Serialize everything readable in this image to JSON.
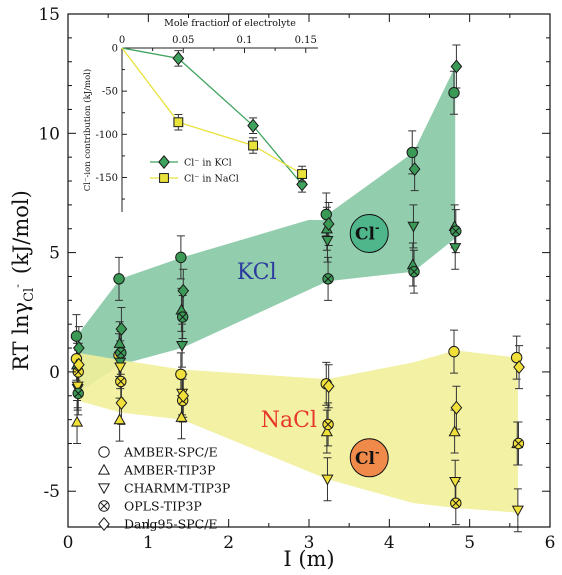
{
  "chart_data": [
    {
      "type": "scatter",
      "title": "",
      "xlabel": "I (m)",
      "ylabel": "RT lnγ",
      "ylabel_sub": "Cl",
      "ylabel_sup": "-",
      "ylabel_unit": "(kJ/mol)",
      "xlim": [
        0,
        6
      ],
      "ylim": [
        -6.5,
        15
      ],
      "xticks": [
        0,
        1,
        2,
        3,
        4,
        5,
        6
      ],
      "yticks": [
        -5,
        0,
        5,
        10,
        15
      ],
      "grid": false,
      "legend_position": "bottom-left",
      "bands": [
        {
          "name": "KCl",
          "label": "KCl",
          "label_color": "#2b3a9e",
          "color": "#7fc4a0",
          "x": [
            0.12,
            0.65,
            1.42,
            3.23,
            4.3,
            4.82
          ],
          "upper": [
            1.55,
            3.9,
            4.8,
            6.6,
            9.2,
            12.8
          ],
          "lower": [
            -0.9,
            0.3,
            1.0,
            3.8,
            4.2,
            5.6
          ]
        },
        {
          "name": "NaCl",
          "label": "NaCl",
          "label_color": "#e8352a",
          "color": "#f1ef9a",
          "x": [
            0.12,
            0.65,
            1.42,
            3.23,
            4.3,
            4.82,
            5.6
          ],
          "upper": [
            0.8,
            0.5,
            0.1,
            -0.3,
            0.4,
            0.9,
            0.6
          ],
          "lower": [
            -1.2,
            -1.7,
            -2.0,
            -4.5,
            -5.5,
            -5.7,
            -5.9
          ]
        }
      ],
      "series": [
        {
          "name": "AMBER-SPC/E",
          "marker": "circle",
          "kcl": [
            [
              0.12,
              1.5
            ],
            [
              0.65,
              3.9
            ],
            [
              1.42,
              4.8
            ],
            [
              3.23,
              6.6
            ],
            [
              4.3,
              9.2
            ],
            [
              4.82,
              11.7
            ]
          ],
          "nacl": [
            [
              0.12,
              0.55
            ],
            [
              0.65,
              0.7
            ],
            [
              1.42,
              -0.1
            ],
            [
              3.23,
              -0.5
            ],
            [
              4.82,
              0.85
            ],
            [
              5.6,
              0.6
            ]
          ]
        },
        {
          "name": "AMBER-TIP3P",
          "marker": "triangle-up",
          "kcl": [
            [
              0.12,
              0.3
            ],
            [
              0.65,
              1.2
            ],
            [
              1.42,
              2.6
            ],
            [
              3.23,
              6.0
            ],
            [
              4.3,
              4.5
            ],
            [
              4.82,
              6.1
            ]
          ],
          "nacl": [
            [
              0.12,
              -2.1
            ],
            [
              0.65,
              -2.0
            ],
            [
              1.42,
              -1.9
            ],
            [
              3.23,
              -2.5
            ],
            [
              4.82,
              -2.5
            ],
            [
              5.6,
              -3.0
            ]
          ]
        },
        {
          "name": "CHARMM-TIP3P",
          "marker": "triangle-down",
          "kcl": [
            [
              0.12,
              -0.7
            ],
            [
              0.65,
              0.4
            ],
            [
              1.42,
              1.1
            ],
            [
              3.23,
              5.5
            ],
            [
              4.3,
              6.1
            ],
            [
              4.82,
              5.2
            ]
          ],
          "nacl": [
            [
              0.12,
              -0.6
            ],
            [
              0.65,
              0.2
            ],
            [
              1.42,
              -0.9
            ],
            [
              3.23,
              -4.5
            ],
            [
              4.82,
              -4.6
            ],
            [
              5.6,
              -5.8
            ]
          ]
        },
        {
          "name": "OPLS-TIP3P",
          "marker": "cross-circle",
          "kcl": [
            [
              0.12,
              -0.9
            ],
            [
              0.65,
              0.8
            ],
            [
              1.42,
              2.3
            ],
            [
              3.23,
              3.9
            ],
            [
              4.3,
              4.2
            ],
            [
              4.82,
              5.9
            ]
          ],
          "nacl": [
            [
              0.12,
              0.0
            ],
            [
              0.65,
              -0.4
            ],
            [
              1.42,
              -1.2
            ],
            [
              3.23,
              -2.2
            ],
            [
              4.82,
              -5.5
            ],
            [
              5.6,
              -3.0
            ]
          ]
        },
        {
          "name": "Dang95-SPC/E",
          "marker": "diamond",
          "kcl": [
            [
              0.12,
              1.0
            ],
            [
              0.65,
              1.8
            ],
            [
              1.42,
              3.4
            ],
            [
              3.23,
              6.2
            ],
            [
              4.3,
              8.5
            ],
            [
              4.82,
              12.8
            ]
          ],
          "nacl": [
            [
              0.12,
              0.3
            ],
            [
              0.65,
              -1.3
            ],
            [
              1.42,
              -1.0
            ],
            [
              3.23,
              -0.6
            ],
            [
              4.82,
              -1.5
            ],
            [
              5.6,
              0.2
            ]
          ]
        }
      ],
      "series_colors": {
        "kcl": "#3a9a55",
        "nacl": "#f2e03a"
      },
      "error_bar": 0.9,
      "badges": [
        {
          "label": "Cl",
          "sup": "-",
          "x": 3.75,
          "y": 5.8,
          "color": "#4fb68b"
        },
        {
          "label": "Cl",
          "sup": "-",
          "x": 3.75,
          "y": -3.6,
          "color": "#f08a4b"
        }
      ]
    },
    {
      "type": "line",
      "title": "Mole fraction of electrolyte",
      "xlabel": "Mole fraction of electrolyte",
      "ylabel": "Cl⁻-ion contribution (kJ/mol)",
      "xlim": [
        0,
        0.16
      ],
      "ylim": [
        -190,
        0
      ],
      "xticks": [
        0,
        0.05,
        0.1,
        0.15
      ],
      "yticks": [
        0,
        -50,
        -100,
        -150
      ],
      "xtick_labels": [
        "0",
        "0.05",
        "0.1",
        "0.15"
      ],
      "ytick_labels": [
        "0",
        "-50",
        "-100",
        "-150"
      ],
      "legend_position": "bottom-left",
      "series": [
        {
          "name": "Cl⁻ in KCl",
          "marker": "diamond",
          "color": "#3fa35e",
          "x": [
            0,
            0.046,
            0.107,
            0.147
          ],
          "values": [
            0,
            -12,
            -90,
            -158
          ]
        },
        {
          "name": "Cl⁻ in NaCl",
          "marker": "square",
          "color": "#e8e23a",
          "x": [
            0,
            0.046,
            0.107,
            0.147
          ],
          "values": [
            0,
            -86,
            -113,
            -146
          ]
        }
      ],
      "error_bar": 9
    }
  ]
}
